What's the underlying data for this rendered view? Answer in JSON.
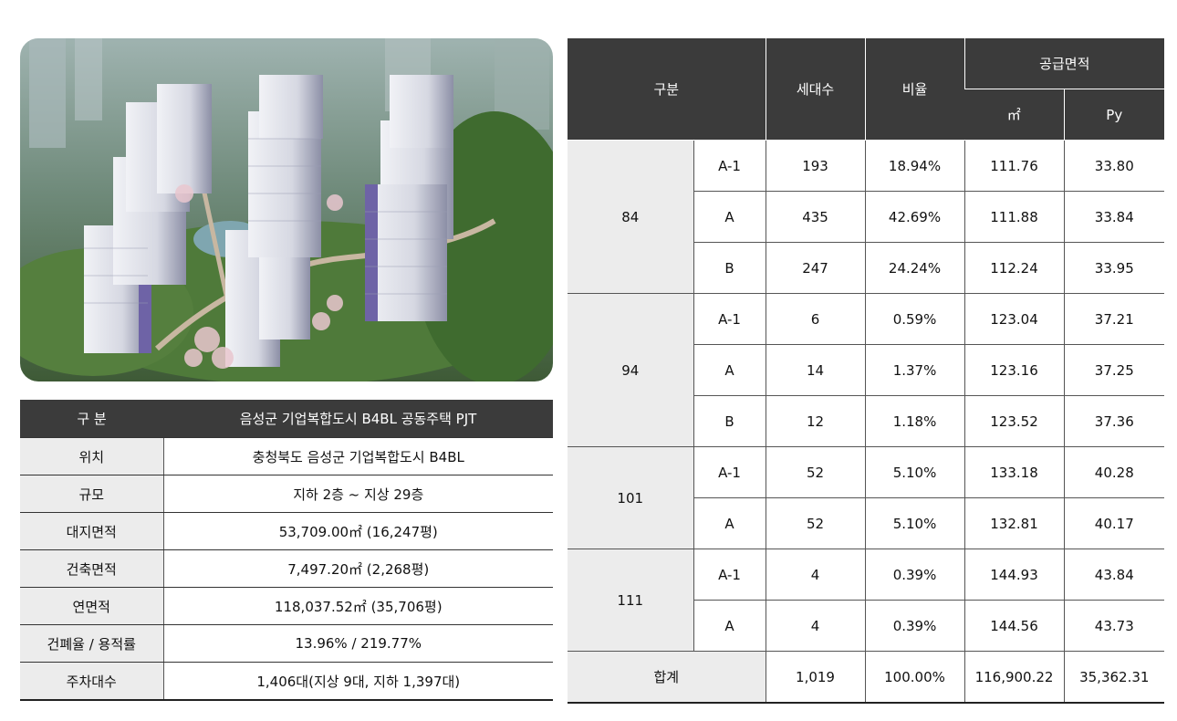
{
  "info_table": {
    "header": {
      "label": "구 분",
      "value": "음성군 기업복합도시 B4BL 공동주택 PJT"
    },
    "rows": [
      {
        "label": "위치",
        "value": "충청북도 음성군 기업복합도시 B4BL"
      },
      {
        "label": "규모",
        "value": "지하 2층 ~ 지상 29층"
      },
      {
        "label": "대지면적",
        "value": "53,709.00㎡ (16,247평)"
      },
      {
        "label": "건축면적",
        "value": "7,497.20㎡ (2,268평)"
      },
      {
        "label": "연면적",
        "value": "118,037.52㎡ (35,706평)"
      },
      {
        "label": "건폐율 / 용적률",
        "value": "13.96% / 219.77%"
      },
      {
        "label": "주차대수",
        "value": "1,406대(지상 9대, 지하 1,397대)"
      }
    ]
  },
  "supply_table": {
    "headers": {
      "category": "구분",
      "households": "세대수",
      "ratio": "비율",
      "supply_area": "공급면적",
      "sqm": "㎡",
      "py": "Py"
    },
    "groups": [
      {
        "size": "84",
        "rows": [
          {
            "type": "A-1",
            "households": "193",
            "ratio": "18.94%",
            "sqm": "111.76",
            "py": "33.80"
          },
          {
            "type": "A",
            "households": "435",
            "ratio": "42.69%",
            "sqm": "111.88",
            "py": "33.84"
          },
          {
            "type": "B",
            "households": "247",
            "ratio": "24.24%",
            "sqm": "112.24",
            "py": "33.95"
          }
        ]
      },
      {
        "size": "94",
        "rows": [
          {
            "type": "A-1",
            "households": "6",
            "ratio": "0.59%",
            "sqm": "123.04",
            "py": "37.21"
          },
          {
            "type": "A",
            "households": "14",
            "ratio": "1.37%",
            "sqm": "123.16",
            "py": "37.25"
          },
          {
            "type": "B",
            "households": "12",
            "ratio": "1.18%",
            "sqm": "123.52",
            "py": "37.36"
          }
        ]
      },
      {
        "size": "101",
        "rows": [
          {
            "type": "A-1",
            "households": "52",
            "ratio": "5.10%",
            "sqm": "133.18",
            "py": "40.28"
          },
          {
            "type": "A",
            "households": "52",
            "ratio": "5.10%",
            "sqm": "132.81",
            "py": "40.17"
          }
        ]
      },
      {
        "size": "111",
        "rows": [
          {
            "type": "A-1",
            "households": "4",
            "ratio": "0.39%",
            "sqm": "144.93",
            "py": "43.84"
          },
          {
            "type": "A",
            "households": "4",
            "ratio": "0.39%",
            "sqm": "144.56",
            "py": "43.73"
          }
        ]
      }
    ],
    "total": {
      "label": "합계",
      "households": "1,019",
      "ratio": "100.00%",
      "sqm": "116,900.22",
      "py": "35,362.31"
    }
  },
  "colors": {
    "header_bg": "#3b3b3b",
    "label_bg": "#ececec"
  }
}
